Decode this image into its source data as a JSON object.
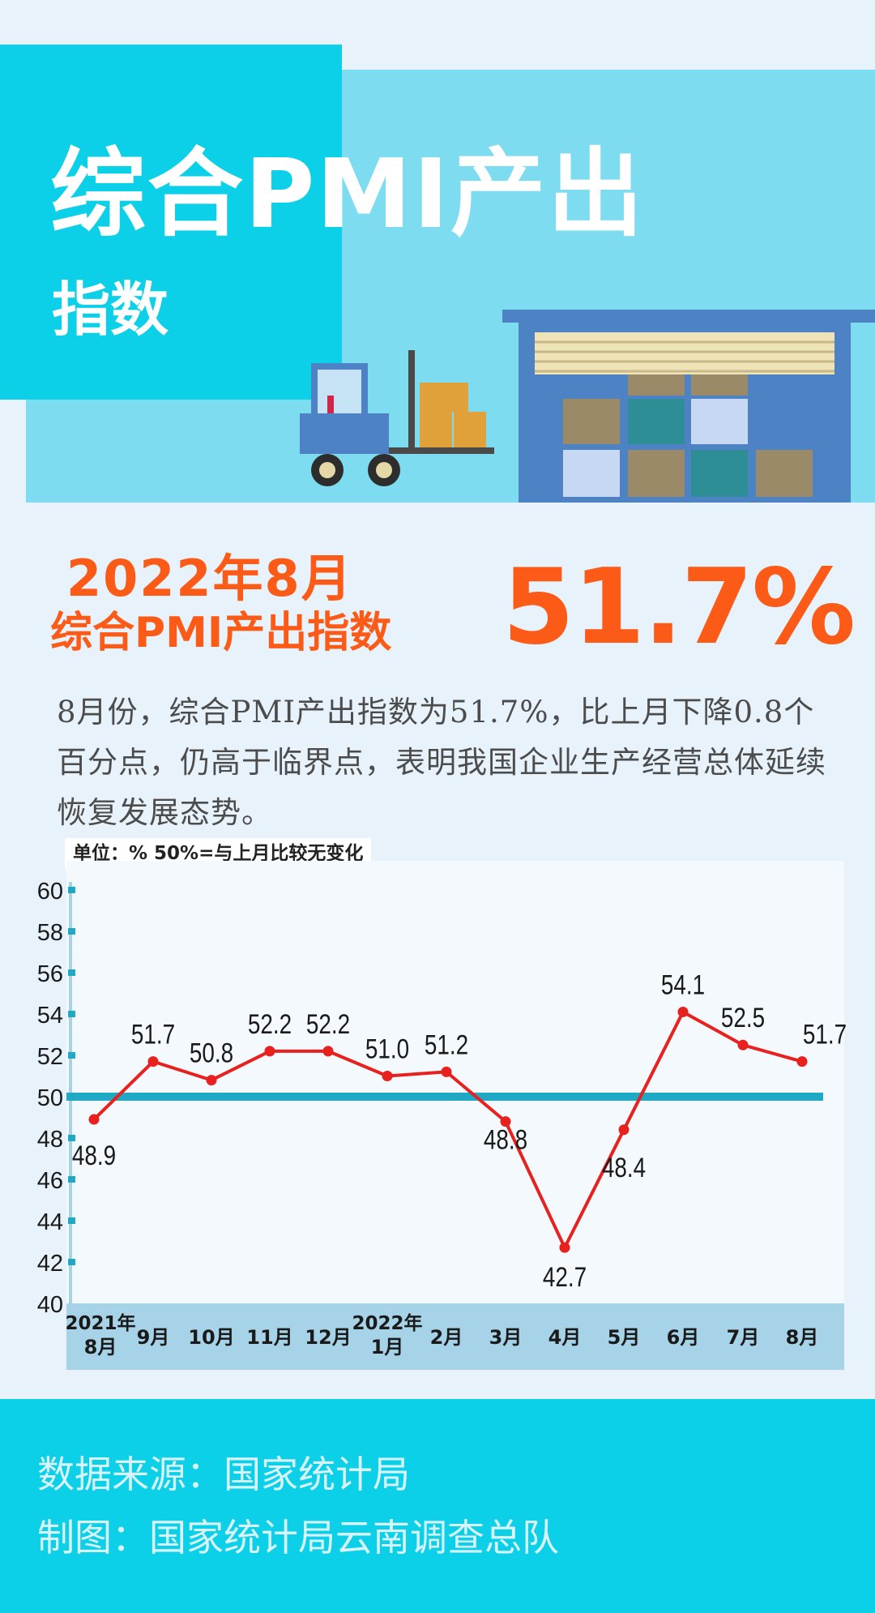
{
  "header": {
    "title_line1": "综合PMI产出",
    "title_line2": "指数"
  },
  "highlight": {
    "date": "2022年8月",
    "name": "综合PMI产出指数",
    "value": "51.7%",
    "color": "#fb5a17"
  },
  "description": "8月份，综合PMI产出指数为51.7%，比上月下降0.8个百分点，仍高于临界点，表明我国企业生产经营总体延续恢复发展态势。",
  "chart_note": "单位：%  50%=与上月比较无变化",
  "chart_data": {
    "type": "line",
    "categories": [
      [
        "2021年",
        "8月"
      ],
      [
        "9月"
      ],
      [
        "10月"
      ],
      [
        "11月"
      ],
      [
        "12月"
      ],
      [
        "2022年",
        "1月"
      ],
      [
        "2月"
      ],
      [
        "3月"
      ],
      [
        "4月"
      ],
      [
        "5月"
      ],
      [
        "6月"
      ],
      [
        "7月"
      ],
      [
        "8月"
      ]
    ],
    "values": [
      48.9,
      51.7,
      50.8,
      52.2,
      52.2,
      51.0,
      51.2,
      48.8,
      42.7,
      48.4,
      54.1,
      52.5,
      51.7
    ],
    "value_labels": [
      "48.9",
      "51.7",
      "50.8",
      "52.2",
      "52.2",
      "51.0",
      "51.2",
      "48.8",
      "42.7",
      "48.4",
      "54.1",
      "52.5",
      "51.7"
    ],
    "yticks": [
      "60",
      "58",
      "56",
      "54",
      "52",
      "50",
      "48",
      "46",
      "44",
      "42",
      "40"
    ],
    "ylim": [
      40,
      60
    ],
    "reference_line": 50,
    "line_color": "#e8201e",
    "reference_color": "#1fa9c4",
    "grid": false
  },
  "footer": {
    "source": "数据来源：国家统计局",
    "credit": "制图：国家统计局云南调查总队"
  }
}
